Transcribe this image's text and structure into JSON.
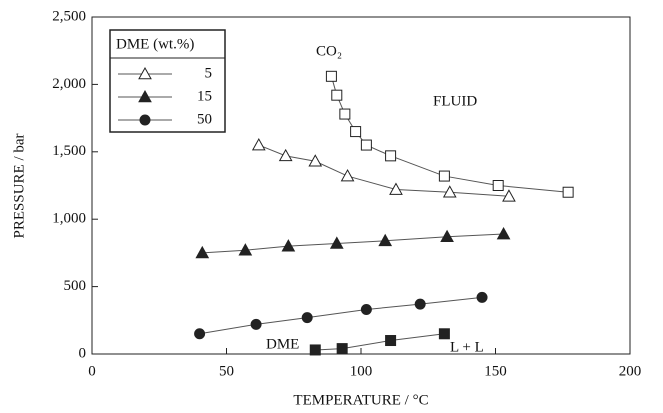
{
  "chart_data": {
    "type": "scatter",
    "x_label": "TEMPERATURE / °C",
    "y_label": "PRESSURE / bar",
    "xlim": [
      0,
      200
    ],
    "xticks": [
      0,
      50,
      100,
      150,
      200
    ],
    "ylim": [
      0,
      2500
    ],
    "yticks": [
      0,
      500,
      {
        "value": 1000,
        "label": "1,000"
      },
      {
        "value": 1500,
        "label": "1,500"
      },
      {
        "value": 2000,
        "label": "2,000"
      },
      {
        "value": 2500,
        "label": "2,500"
      }
    ],
    "legend_title": "DME (wt.%)",
    "annotations": [
      "CO₂",
      "FLUID",
      "DME",
      "L + L"
    ],
    "series": [
      {
        "name": "5",
        "marker": "triangle-open",
        "color": "#222",
        "x": [
          62,
          72,
          83,
          95,
          113,
          133,
          155
        ],
        "values": [
          1550,
          1470,
          1430,
          1320,
          1220,
          1200,
          1170
        ]
      },
      {
        "name": "15",
        "marker": "triangle",
        "color": "#222",
        "x": [
          41,
          57,
          73,
          91,
          109,
          132,
          153
        ],
        "values": [
          750,
          770,
          800,
          820,
          840,
          870,
          890
        ]
      },
      {
        "name": "50",
        "marker": "circle",
        "color": "#222",
        "x": [
          40,
          61,
          80,
          102,
          122,
          145
        ],
        "values": [
          150,
          220,
          270,
          330,
          370,
          420
        ]
      },
      {
        "marker": "square-open",
        "color": "#222",
        "x": [
          89,
          91,
          94,
          98,
          102,
          111,
          131,
          151,
          177
        ],
        "values": [
          2060,
          1920,
          1780,
          1650,
          1550,
          1470,
          1320,
          1250,
          1200
        ]
      },
      {
        "marker": "square",
        "color": "#222",
        "x": [
          83,
          93,
          111,
          131
        ],
        "values": [
          30,
          40,
          100,
          150
        ]
      }
    ]
  }
}
